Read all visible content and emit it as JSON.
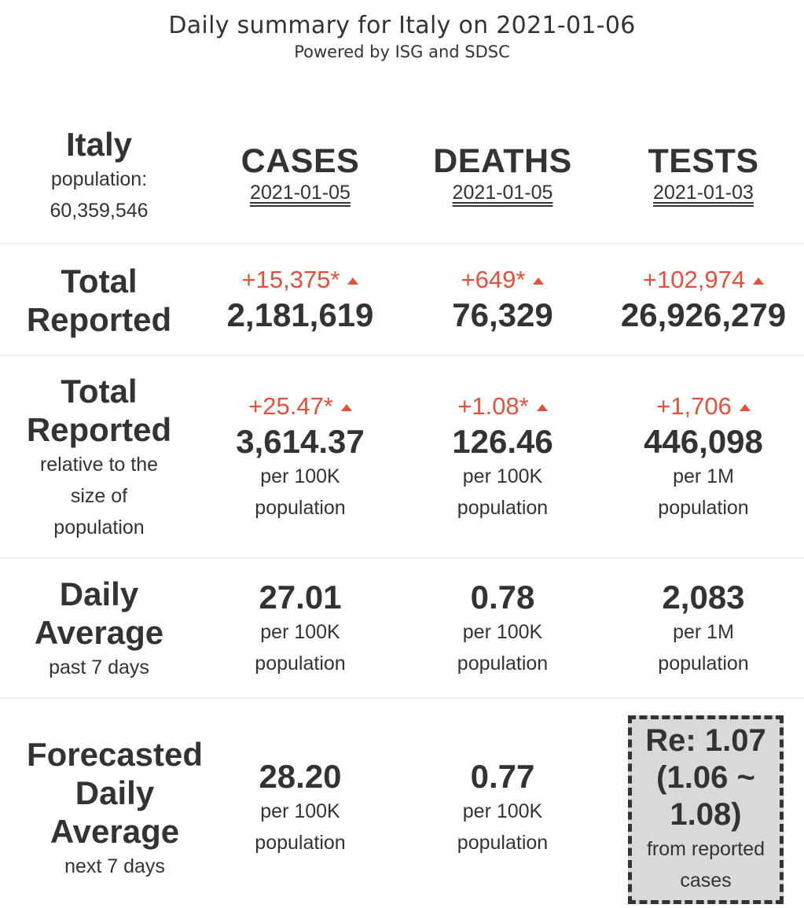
{
  "header": {
    "title": "Daily summary for Italy on 2021-01-06",
    "subtitle": "Powered by ISG and SDSC"
  },
  "country": {
    "name": "Italy",
    "population_label": "population:",
    "population": "60,359,546"
  },
  "columns": [
    {
      "label": "CASES",
      "date": "2021-01-05"
    },
    {
      "label": "DEATHS",
      "date": "2021-01-05"
    },
    {
      "label": "TESTS",
      "date": "2021-01-03"
    }
  ],
  "rows": {
    "total": {
      "label_line1": "Total",
      "label_line2": "Reported",
      "cells": [
        {
          "delta": "+15,375*",
          "value": "2,181,619"
        },
        {
          "delta": "+649*",
          "value": "76,329"
        },
        {
          "delta": "+102,974",
          "value": "26,926,279"
        }
      ]
    },
    "relative": {
      "label_line1": "Total",
      "label_line2": "Reported",
      "sub_line1": "relative to the",
      "sub_line2": "size of",
      "sub_line3": "population",
      "cells": [
        {
          "delta": "+25.47*",
          "value": "3,614.37",
          "unit_line1": "per 100K",
          "unit_line2": "population"
        },
        {
          "delta": "+1.08*",
          "value": "126.46",
          "unit_line1": "per 100K",
          "unit_line2": "population"
        },
        {
          "delta": "+1,706",
          "value": "446,098",
          "unit_line1": "per 1M",
          "unit_line2": "population"
        }
      ]
    },
    "daily": {
      "label_line1": "Daily",
      "label_line2": "Average",
      "sub": "past 7 days",
      "cells": [
        {
          "value": "27.01",
          "unit_line1": "per 100K",
          "unit_line2": "population"
        },
        {
          "value": "0.78",
          "unit_line1": "per 100K",
          "unit_line2": "population"
        },
        {
          "value": "2,083",
          "unit_line1": "per 1M",
          "unit_line2": "population"
        }
      ]
    },
    "forecast": {
      "label_line1": "Forecasted",
      "label_line2": "Daily",
      "label_line3": "Average",
      "sub": "next 7 days",
      "cells": [
        {
          "value": "28.20",
          "unit_line1": "per 100K",
          "unit_line2": "population"
        },
        {
          "value": "0.77",
          "unit_line1": "per 100K",
          "unit_line2": "population"
        }
      ],
      "re": {
        "line1": "Re: 1.07",
        "line2": "(1.06 ~",
        "line3": "1.08)",
        "sub_line1": "from reported",
        "sub_line2": "cases"
      }
    }
  },
  "colors": {
    "text": "#333333",
    "increase": "#e5503a",
    "re_box_bg": "#d9d9d9"
  },
  "icons": {
    "increase": "triangle-up-icon"
  }
}
